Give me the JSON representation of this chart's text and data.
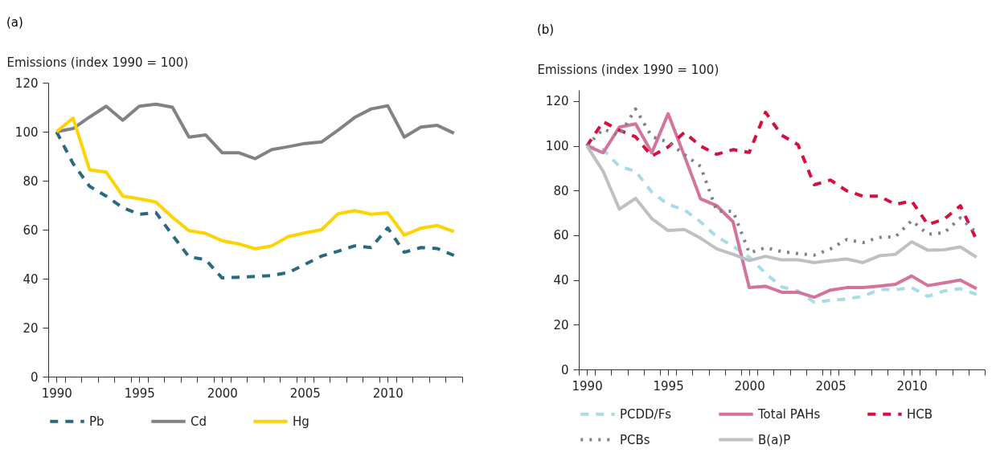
{
  "chart_data": [
    {
      "type": "line",
      "title": "(a)",
      "ylabel": "Emissions (index 1990 = 100)",
      "legend": "bottom",
      "x": [
        1990,
        1991,
        1992,
        1993,
        1994,
        1995,
        1996,
        1997,
        1998,
        1999,
        2000,
        2001,
        2002,
        2003,
        2004,
        2005,
        2006,
        2007,
        2008,
        2009,
        2010,
        2011,
        2012,
        2013,
        2014
      ],
      "xlim": [
        1989.5,
        2014.5
      ],
      "xticks": [
        1990,
        1995,
        2000,
        2005,
        2010,
        {
          "value": 1989.5,
          "label": null
        },
        {
          "value": 1990.5,
          "label": null
        },
        {
          "value": 1991.5,
          "label": null
        },
        {
          "value": 1992.5,
          "label": null
        },
        {
          "value": 1993.5,
          "label": null
        },
        {
          "value": 1994.5,
          "label": null
        },
        {
          "value": 1995.5,
          "label": null
        },
        {
          "value": 1996.5,
          "label": null
        },
        {
          "value": 1997.5,
          "label": null
        },
        {
          "value": 1998.5,
          "label": null
        },
        {
          "value": 1999.5,
          "label": null
        },
        {
          "value": 2000.5,
          "label": null
        },
        {
          "value": 2001.5,
          "label": null
        },
        {
          "value": 2002.5,
          "label": null
        },
        {
          "value": 2003.5,
          "label": null
        },
        {
          "value": 2004.5,
          "label": null
        },
        {
          "value": 2005.5,
          "label": null
        },
        {
          "value": 2006.5,
          "label": null
        },
        {
          "value": 2007.5,
          "label": null
        },
        {
          "value": 2008.5,
          "label": null
        },
        {
          "value": 2009.5,
          "label": null
        },
        {
          "value": 2010.5,
          "label": null
        },
        {
          "value": 2011.5,
          "label": null
        },
        {
          "value": 2012.5,
          "label": null
        },
        {
          "value": 2013.5,
          "label": null
        },
        {
          "value": 2014.5,
          "label": null
        }
      ],
      "ylim": [
        0,
        120
      ],
      "yticks": [
        0,
        20,
        40,
        60,
        80,
        100,
        120
      ],
      "series": [
        {
          "name": "Pb",
          "color": "#2b6a7c",
          "line_style": "dashed",
          "values": [
            100,
            87,
            77.7,
            73.7,
            69,
            66.3,
            67,
            57.8,
            48.9,
            47.8,
            40.3,
            40.6,
            40.9,
            41.3,
            42.5,
            45.8,
            49.2,
            51.2,
            53.4,
            52.7,
            60.7,
            50.8,
            52.7,
            52.3,
            49.5
          ]
        },
        {
          "name": "Cd",
          "color": "#808285",
          "line_style": "solid",
          "values": [
            100,
            101.3,
            106,
            110.4,
            104.7,
            110.4,
            111.2,
            110,
            97.8,
            98.7,
            91.4,
            91.4,
            89,
            92.7,
            93.9,
            95.2,
            95.8,
            100.6,
            105.8,
            109.3,
            110.6,
            97.8,
            101.9,
            102.6,
            99.4
          ]
        },
        {
          "name": "Hg",
          "color": "#ffd200",
          "line_style": "solid",
          "values": [
            100,
            105.6,
            84.4,
            83.5,
            73.7,
            72.6,
            71.3,
            65.1,
            59.6,
            58.5,
            55.5,
            54.2,
            52.2,
            53.4,
            57.2,
            58.7,
            60,
            66.5,
            67.8,
            66.3,
            66.9,
            57.8,
            60.6,
            61.7,
            59.2
          ]
        }
      ]
    },
    {
      "type": "line",
      "title": "(b)",
      "ylabel": "Emissions (index 1990 = 100)",
      "legend": "bottom",
      "x": [
        1990,
        1991,
        1992,
        1993,
        1994,
        1995,
        1996,
        1997,
        1998,
        1999,
        2000,
        2001,
        2002,
        2003,
        2004,
        2005,
        2006,
        2007,
        2008,
        2009,
        2010,
        2011,
        2012,
        2013,
        2014
      ],
      "xlim": [
        1989.5,
        2014.5
      ],
      "xticks": [
        1990,
        1995,
        2000,
        2005,
        2010,
        {
          "value": 1989.5,
          "label": null
        },
        {
          "value": 1990.5,
          "label": null
        },
        {
          "value": 1991.5,
          "label": null
        },
        {
          "value": 1992.5,
          "label": null
        },
        {
          "value": 1993.5,
          "label": null
        },
        {
          "value": 1994.5,
          "label": null
        },
        {
          "value": 1995.5,
          "label": null
        },
        {
          "value": 1996.5,
          "label": null
        },
        {
          "value": 1997.5,
          "label": null
        },
        {
          "value": 1998.5,
          "label": null
        },
        {
          "value": 1999.5,
          "label": null
        },
        {
          "value": 2000.5,
          "label": null
        },
        {
          "value": 2001.5,
          "label": null
        },
        {
          "value": 2002.5,
          "label": null
        },
        {
          "value": 2003.5,
          "label": null
        },
        {
          "value": 2004.5,
          "label": null
        },
        {
          "value": 2005.5,
          "label": null
        },
        {
          "value": 2006.5,
          "label": null
        },
        {
          "value": 2007.5,
          "label": null
        },
        {
          "value": 2008.5,
          "label": null
        },
        {
          "value": 2009.5,
          "label": null
        },
        {
          "value": 2010.5,
          "label": null
        },
        {
          "value": 2011.5,
          "label": null
        },
        {
          "value": 2012.5,
          "label": null
        },
        {
          "value": 2013.5,
          "label": null
        },
        {
          "value": 2014.5,
          "label": null
        }
      ],
      "ylim": [
        0,
        125
      ],
      "yticks": [
        0,
        20,
        40,
        60,
        80,
        100,
        120
      ],
      "series": [
        {
          "name": "PCDD/Fs",
          "color": "#a8dde5",
          "line_style": "dashed",
          "values": [
            100,
            98.4,
            90.8,
            88.6,
            79.3,
            73.8,
            71.4,
            66,
            59.3,
            55.1,
            50.2,
            43,
            36.9,
            35.1,
            30,
            30.9,
            31.5,
            32.7,
            35.7,
            35.7,
            36.6,
            32.7,
            35.1,
            36.1,
            33.5
          ]
        },
        {
          "name": "Total PAHs",
          "color": "#d4739b",
          "line_style": "solid",
          "values": [
            100,
            96.9,
            108.4,
            109.8,
            96.9,
            114.4,
            95.6,
            76.3,
            73.2,
            66,
            36.6,
            37.2,
            34.5,
            34.5,
            32.3,
            35.5,
            36.6,
            36.6,
            37.3,
            38.1,
            41.8,
            37.5,
            38.7,
            40,
            36.1
          ]
        },
        {
          "name": "HCB",
          "color": "#d50f3f",
          "line_style": "dashed",
          "values": [
            100,
            110.8,
            107,
            104,
            95.4,
            99.5,
            106,
            99.9,
            96.2,
            98.3,
            97.1,
            115,
            104.7,
            100.5,
            82.6,
            84.7,
            79.9,
            77.5,
            77.5,
            73.8,
            75.3,
            64.8,
            67.2,
            73.2,
            57.9
          ]
        },
        {
          "name": "PCBs",
          "color": "#808285",
          "line_style": "dotted",
          "values": [
            100,
            107.5,
            104.7,
            116.5,
            104.1,
            101.7,
            96.2,
            90.8,
            70.8,
            70.8,
            52.1,
            54.5,
            52.7,
            51.8,
            51.1,
            53.9,
            58.1,
            56.7,
            59.1,
            59.3,
            66.6,
            60.5,
            61.1,
            67.8,
            61.1
          ]
        },
        {
          "name": "B(a)P",
          "color": "#bfc0c4",
          "line_style": "solid",
          "values": [
            100,
            88.6,
            71.7,
            76.5,
            67.4,
            62.1,
            62.6,
            58.7,
            53.9,
            51.5,
            48.7,
            50.6,
            49,
            49,
            47.8,
            48.7,
            49.4,
            47.8,
            50.8,
            51.5,
            57.1,
            53.3,
            53.5,
            54.8,
            50.2
          ]
        }
      ]
    }
  ]
}
